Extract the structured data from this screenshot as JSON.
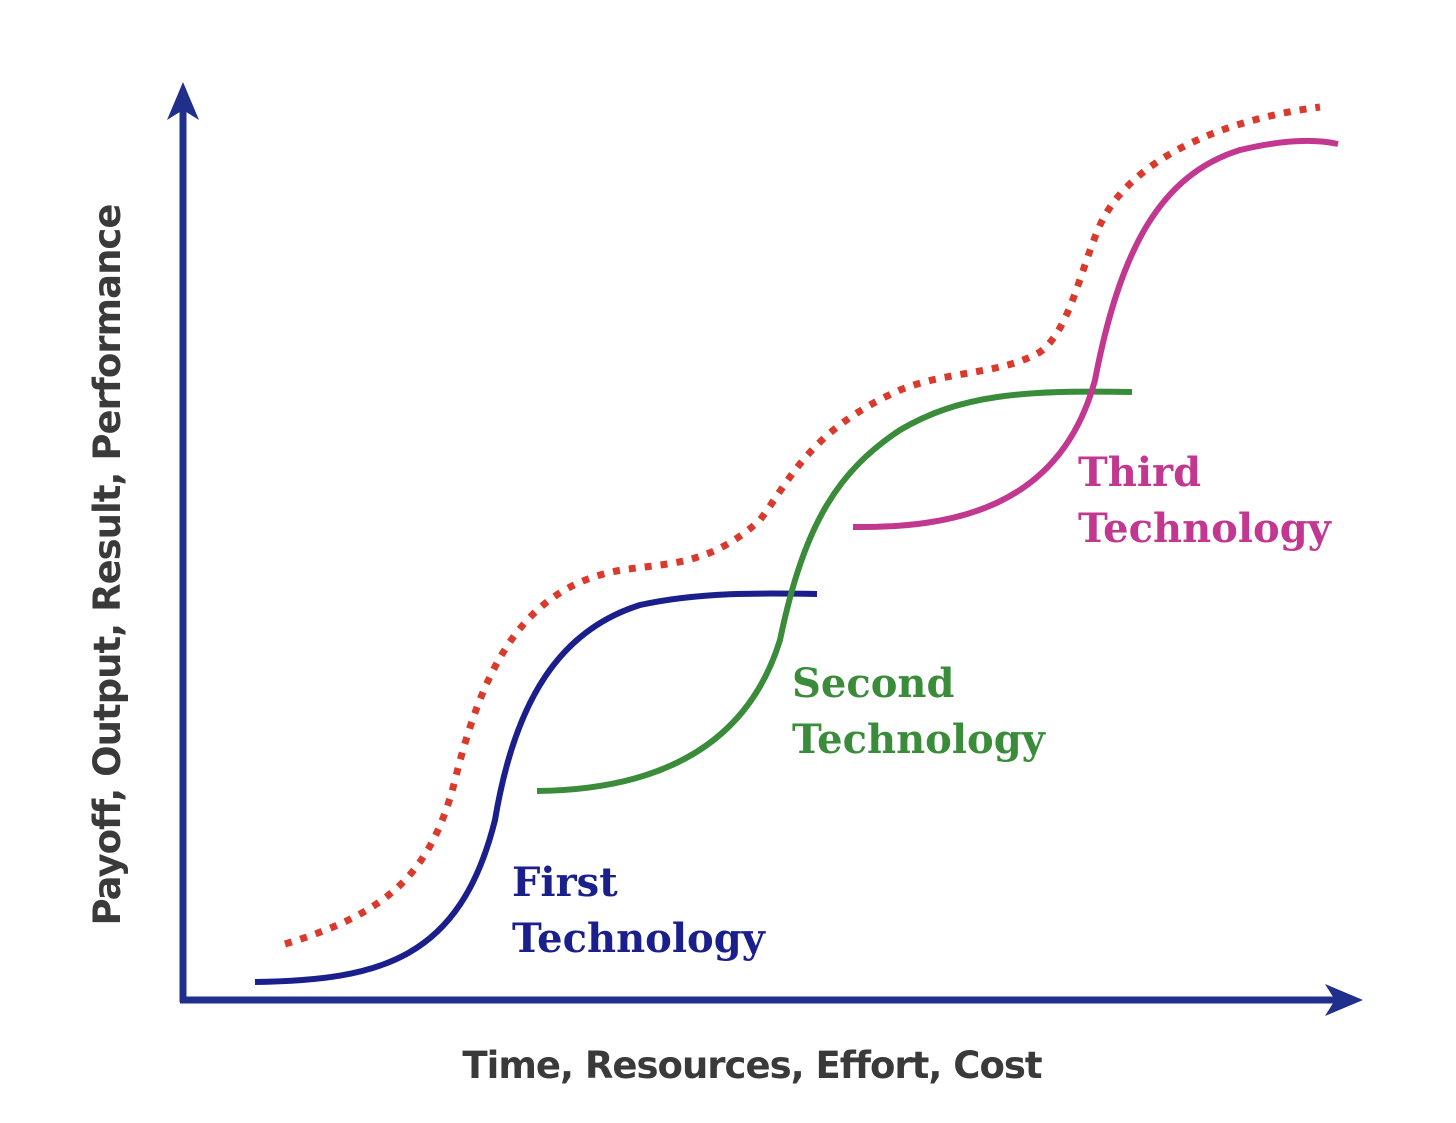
{
  "axes": {
    "x_label": "Time, Resources, Effort, Cost",
    "y_label": "Payoff, Output, Result, Performance"
  },
  "curves": [
    {
      "id": "first",
      "label_line1": "First",
      "label_line2": "Technology",
      "color": "#1a1f8c"
    },
    {
      "id": "second",
      "label_line1": "Second",
      "label_line2": "Technology",
      "color": "#3a8c3a"
    },
    {
      "id": "third",
      "label_line1": "Third",
      "label_line2": "Technology",
      "color": "#c2378f"
    }
  ],
  "envelope": {
    "color": "#d93a2b",
    "style": "dotted"
  },
  "axis_color": "#1f2f8c"
}
